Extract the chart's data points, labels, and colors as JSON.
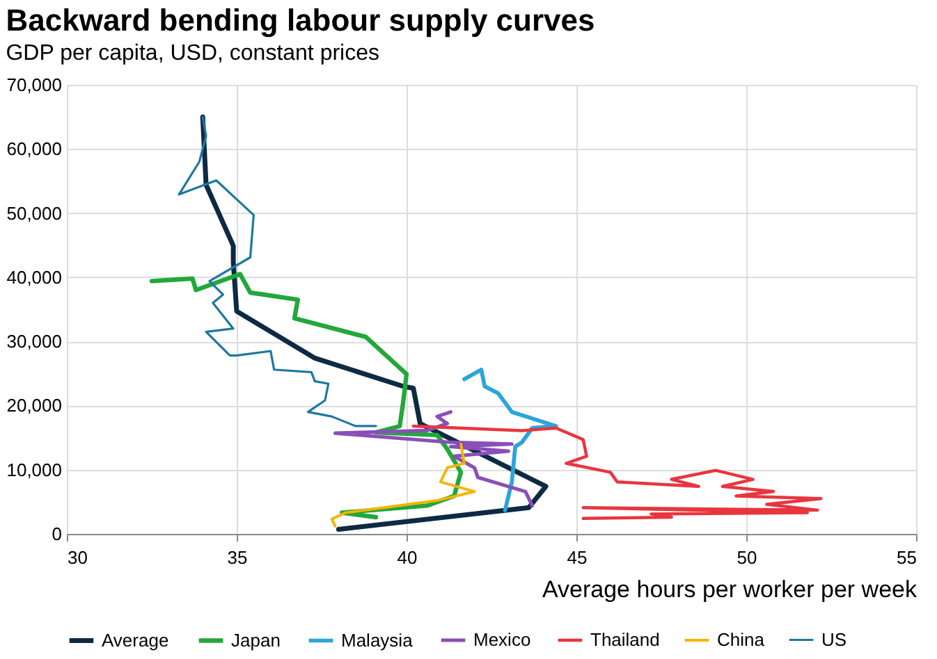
{
  "chart_data": {
    "type": "line",
    "title": "Backward bending labour supply curves",
    "subtitle": "GDP per capita, USD, constant prices",
    "xlabel": "Average hours per worker per week",
    "xlim": [
      30,
      55
    ],
    "xticks": [
      30,
      35,
      40,
      45,
      50,
      55
    ],
    "ylim": [
      0,
      70000
    ],
    "yticks": [
      {
        "value": 0,
        "label": "0"
      },
      {
        "value": 10000,
        "label": "10,000"
      },
      {
        "value": 20000,
        "label": "20,000"
      },
      {
        "value": 30000,
        "label": "30,000"
      },
      {
        "value": 40000,
        "label": "40,000"
      },
      {
        "value": 50000,
        "label": "50,000"
      },
      {
        "value": 60000,
        "label": "60,000"
      },
      {
        "value": 70000,
        "label": "70,000"
      }
    ],
    "grid": true,
    "legend": "bottom",
    "series": [
      {
        "name": "Average",
        "color": "#0d2a45",
        "x": [
          38,
          43.6,
          44.1,
          40.4,
          40.2,
          39.9,
          37.3,
          35.0,
          34.9,
          34.9,
          34.1,
          34.0
        ],
        "values": [
          700,
          4100,
          7400,
          17200,
          22700,
          23000,
          27400,
          34700,
          42400,
          44900,
          54400,
          65000
        ]
      },
      {
        "name": "Japan",
        "color": "#22a83a",
        "x": [
          32.5,
          33.7,
          33.8,
          35.1,
          35.4,
          35.8,
          36.8,
          36.7,
          38.8,
          40.0,
          39.9,
          39.8,
          39.1,
          40.9,
          41.2,
          41.6,
          41.4,
          40.6,
          38.1,
          39.1
        ],
        "values": [
          39400,
          39800,
          38000,
          40500,
          37600,
          37300,
          36500,
          33600,
          30700,
          24900,
          20500,
          16800,
          15800,
          15400,
          13200,
          9600,
          5900,
          4400,
          3300,
          2600
        ]
      },
      {
        "name": "Malaysia",
        "color": "#2aa5dc",
        "x": [
          41.7,
          42.2,
          42.3,
          42.7,
          43.1,
          44.4,
          43.7,
          43.4,
          43.2,
          43.1,
          42.9
        ],
        "values": [
          24100,
          25600,
          23000,
          21900,
          19000,
          16800,
          16500,
          14300,
          13600,
          8100,
          3700
        ]
      },
      {
        "name": "Mexico",
        "color": "#8a4fb8",
        "x": [
          41.3,
          40.9,
          41.2,
          40.6,
          37.9,
          41.2,
          43.1,
          41.3,
          43.0,
          41.4,
          42.0,
          42.1,
          43.5,
          43.7
        ],
        "values": [
          19000,
          18300,
          17200,
          16100,
          15700,
          14300,
          14000,
          13600,
          12900,
          12100,
          10300,
          8800,
          6600,
          4400
        ]
      },
      {
        "name": "Thailand",
        "color": "#e8363f",
        "x": [
          40.2,
          43.4,
          44.4,
          45.2,
          45.3,
          44.7,
          46.0,
          46.2,
          48.6,
          47.8,
          49.1,
          50.2,
          49.3,
          50.8,
          49.7,
          52.2,
          50.6,
          52.1,
          45.2,
          51.8,
          47.2,
          47.8,
          45.2
        ],
        "values": [
          16800,
          16100,
          16500,
          14700,
          12100,
          11000,
          9600,
          8100,
          7400,
          8500,
          9900,
          8500,
          7400,
          6600,
          5900,
          5500,
          4600,
          3700,
          4100,
          3300,
          3100,
          2600,
          2400
        ]
      },
      {
        "name": "China",
        "color": "#f5b400",
        "x": [
          37.9,
          37.8,
          38.2,
          40.9,
          42.0,
          41.0,
          41.2,
          41.7,
          41.6
        ],
        "values": [
          1200,
          2300,
          3300,
          5200,
          6600,
          8100,
          10300,
          11000,
          14000
        ]
      },
      {
        "name": "US",
        "color": "#1f78a0",
        "x": [
          39.1,
          38.5,
          37.8,
          37.1,
          37.6,
          37.7,
          37.3,
          37.2,
          36.1,
          36.0,
          35.0,
          34.8,
          34.1,
          34.9,
          34.3,
          34.6,
          34.2,
          35.4,
          35.5,
          34.4,
          33.3,
          33.9,
          34.1,
          34.0
        ],
        "values": [
          16800,
          16800,
          18300,
          19000,
          20800,
          23400,
          23800,
          25200,
          25600,
          28500,
          27800,
          27800,
          31500,
          32000,
          36000,
          37300,
          39400,
          43100,
          49700,
          55100,
          52900,
          58000,
          62000,
          65000
        ]
      }
    ]
  }
}
